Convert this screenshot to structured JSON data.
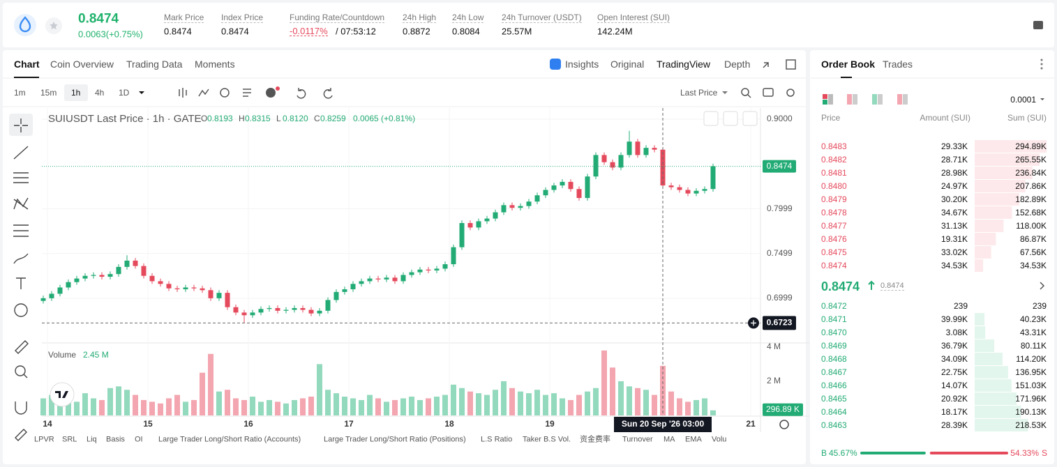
{
  "header": {
    "price": "0.8474",
    "change": "0.0063(+0.75%)",
    "stats": [
      {
        "label": "Mark Price",
        "value": "0.8474"
      },
      {
        "label": "Index Price",
        "value": "0.8474"
      },
      {
        "label": "Funding Rate/Countdown",
        "value": "-0.0117%",
        "countdown": "/ 07:53:12"
      },
      {
        "label": "24h High",
        "value": "0.8872"
      },
      {
        "label": "24h Low",
        "value": "0.8084"
      },
      {
        "label": "24h Turnover (USDT)",
        "value": "25.57M"
      },
      {
        "label": "Open Interest (SUI)",
        "value": "142.24M"
      }
    ]
  },
  "tabs": [
    "Chart",
    "Coin Overview",
    "Trading Data",
    "Moments"
  ],
  "view_tabs": [
    "Insights",
    "Original",
    "TradingView",
    "Depth"
  ],
  "intervals": [
    "1m",
    "15m",
    "1h",
    "4h",
    "1D"
  ],
  "price_type": "Last Price",
  "chart_data": {
    "type": "candlestick",
    "title": "SUIUSDT Last Price · 1h · GATE",
    "ohlc_legend": [
      {
        "key": "O",
        "value": "0.8193"
      },
      {
        "key": "H",
        "value": "0.8315"
      },
      {
        "key": "L",
        "value": "0.8120"
      },
      {
        "key": "C",
        "value": "0.8259"
      }
    ],
    "legend_change": "0.0065 (+0.81%)",
    "up_color": "#22ab74",
    "down_color": "#e5495c",
    "x": [
      -1,
      1,
      3,
      5,
      7,
      9,
      11,
      13,
      15,
      17,
      19,
      21,
      23,
      25,
      27,
      29,
      31,
      33,
      35,
      37,
      39,
      41,
      43,
      45,
      47,
      49,
      51,
      53,
      55,
      57,
      59,
      61,
      63,
      65,
      67,
      69,
      71,
      73,
      75,
      77,
      79,
      81,
      83,
      85,
      87,
      89,
      91,
      93,
      95,
      97,
      99,
      101,
      103,
      105,
      107,
      109,
      111,
      113,
      115,
      117,
      119,
      121,
      123,
      125,
      127,
      129,
      131,
      133,
      135,
      137,
      139,
      141,
      143,
      145,
      147,
      149,
      151,
      153,
      155,
      157,
      159
    ],
    "open": [
      0.697,
      0.7,
      0.705,
      0.712,
      0.718,
      0.722,
      0.725,
      0.726,
      0.724,
      0.727,
      0.735,
      0.742,
      0.736,
      0.725,
      0.719,
      0.716,
      0.711,
      0.71,
      0.712,
      0.711,
      0.709,
      0.7,
      0.706,
      0.69,
      0.684,
      0.681,
      0.684,
      0.688,
      0.689,
      0.686,
      0.687,
      0.689,
      0.687,
      0.683,
      0.686,
      0.698,
      0.707,
      0.71,
      0.716,
      0.719,
      0.722,
      0.721,
      0.723,
      0.719,
      0.726,
      0.729,
      0.732,
      0.731,
      0.733,
      0.738,
      0.757,
      0.784,
      0.779,
      0.786,
      0.789,
      0.796,
      0.804,
      0.801,
      0.803,
      0.808,
      0.815,
      0.821,
      0.826,
      0.83,
      0.822,
      0.812,
      0.836,
      0.86,
      0.852,
      0.846,
      0.86,
      0.875,
      0.86,
      0.868,
      0.866,
      0.826,
      0.824,
      0.821,
      0.817,
      0.82,
      0.822
    ],
    "high": [
      0.703,
      0.708,
      0.715,
      0.721,
      0.725,
      0.728,
      0.729,
      0.729,
      0.73,
      0.738,
      0.748,
      0.745,
      0.739,
      0.728,
      0.722,
      0.719,
      0.714,
      0.715,
      0.715,
      0.714,
      0.712,
      0.709,
      0.709,
      0.693,
      0.687,
      0.687,
      0.691,
      0.692,
      0.692,
      0.69,
      0.692,
      0.692,
      0.69,
      0.689,
      0.701,
      0.71,
      0.713,
      0.719,
      0.722,
      0.725,
      0.725,
      0.726,
      0.726,
      0.729,
      0.732,
      0.735,
      0.735,
      0.736,
      0.741,
      0.76,
      0.787,
      0.787,
      0.789,
      0.792,
      0.799,
      0.807,
      0.807,
      0.806,
      0.811,
      0.818,
      0.824,
      0.829,
      0.833,
      0.833,
      0.825,
      0.839,
      0.863,
      0.863,
      0.855,
      0.863,
      0.887,
      0.878,
      0.871,
      0.871,
      0.869,
      0.829,
      0.827,
      0.824,
      0.823,
      0.825,
      0.8504
    ],
    "low": [
      0.694,
      0.697,
      0.702,
      0.709,
      0.715,
      0.719,
      0.722,
      0.721,
      0.721,
      0.724,
      0.732,
      0.733,
      0.722,
      0.716,
      0.713,
      0.708,
      0.707,
      0.707,
      0.708,
      0.706,
      0.697,
      0.697,
      0.687,
      0.681,
      0.6723,
      0.678,
      0.681,
      0.685,
      0.683,
      0.683,
      0.684,
      0.684,
      0.68,
      0.68,
      0.683,
      0.695,
      0.704,
      0.707,
      0.713,
      0.716,
      0.718,
      0.718,
      0.716,
      0.716,
      0.723,
      0.726,
      0.728,
      0.728,
      0.73,
      0.735,
      0.754,
      0.776,
      0.776,
      0.783,
      0.786,
      0.793,
      0.798,
      0.798,
      0.8,
      0.805,
      0.812,
      0.818,
      0.823,
      0.819,
      0.809,
      0.809,
      0.833,
      0.849,
      0.843,
      0.843,
      0.857,
      0.857,
      0.857,
      0.863,
      0.823,
      0.821,
      0.818,
      0.814,
      0.814,
      0.817,
      0.819
    ],
    "close": [
      0.7,
      0.705,
      0.712,
      0.718,
      0.722,
      0.725,
      0.726,
      0.724,
      0.727,
      0.735,
      0.742,
      0.736,
      0.725,
      0.719,
      0.716,
      0.711,
      0.71,
      0.712,
      0.711,
      0.709,
      0.7,
      0.706,
      0.69,
      0.684,
      0.681,
      0.684,
      0.688,
      0.689,
      0.686,
      0.687,
      0.689,
      0.687,
      0.683,
      0.686,
      0.698,
      0.707,
      0.71,
      0.716,
      0.719,
      0.722,
      0.721,
      0.723,
      0.719,
      0.726,
      0.729,
      0.732,
      0.731,
      0.733,
      0.738,
      0.757,
      0.784,
      0.779,
      0.786,
      0.789,
      0.796,
      0.804,
      0.801,
      0.803,
      0.808,
      0.815,
      0.821,
      0.826,
      0.83,
      0.822,
      0.812,
      0.836,
      0.86,
      0.852,
      0.846,
      0.86,
      0.875,
      0.86,
      0.868,
      0.866,
      0.826,
      0.824,
      0.821,
      0.817,
      0.82,
      0.822,
      0.8474
    ],
    "xlim": [
      -1.333,
      170.333
    ],
    "xticks": [
      {
        "value": 0,
        "label": "14"
      },
      {
        "value": 24,
        "label": "15"
      },
      {
        "value": 48,
        "label": "16"
      },
      {
        "value": 72,
        "label": "17"
      },
      {
        "value": 96,
        "label": "18"
      },
      {
        "value": 120,
        "label": "19"
      },
      {
        "value": 168,
        "label": "21"
      }
    ],
    "ylim": [
      0.6516,
      0.9125
    ],
    "yticks": [
      {
        "value": 0.9,
        "label": "0.9000"
      },
      0.7999,
      0.7499,
      0.6999
    ],
    "grid": true,
    "crosshair": {
      "x": 147,
      "x_label": "Sun 20 Sep '26 03:00",
      "y": 0.6723
    },
    "volume": {
      "title": "Volume",
      "legend_value": "2.45 M",
      "up_color": "#93d9bd",
      "down_color": "#f3a5b0",
      "values": [
        1.0,
        1.2,
        0.9,
        1.1,
        0.8,
        1.3,
        1.0,
        0.9,
        1.6,
        1.7,
        1.5,
        1.2,
        0.9,
        0.8,
        0.7,
        1.0,
        1.2,
        0.8,
        0.9,
        2.5,
        3.6,
        1.4,
        1.5,
        1.0,
        0.9,
        1.1,
        0.8,
        0.9,
        0.8,
        0.7,
        0.9,
        1.0,
        1.1,
        3.0,
        1.5,
        1.3,
        1.1,
        1.0,
        0.9,
        1.2,
        1.0,
        0.8,
        0.9,
        1.0,
        1.1,
        0.9,
        1.0,
        1.1,
        1.2,
        1.8,
        1.6,
        1.4,
        1.3,
        1.2,
        1.5,
        2.0,
        1.6,
        1.4,
        1.3,
        1.5,
        1.2,
        1.3,
        1.0,
        0.9,
        1.2,
        1.4,
        1.6,
        3.8,
        2.8,
        2.0,
        1.7,
        1.6,
        1.5,
        1.2,
        2.9,
        1.4,
        1.0,
        0.8,
        0.9,
        1.0,
        0.29689
      ],
      "last_value_label": "296.89 K",
      "ylim": [
        0,
        4.16
      ],
      "yticks": [
        {
          "value": 4,
          "label": "4 M"
        },
        {
          "value": 2,
          "label": "2 M"
        }
      ]
    }
  },
  "indicators": [
    "LPVR",
    "SRL",
    "Liq",
    "Basis",
    "OI",
    "Large Trader Long/Short Ratio (Accounts)",
    "Large Trader Long/Short Ratio (Positions)",
    "L.S Ratio",
    "Taker B.S Vol.",
    "资金费率",
    "Turnover",
    "MA",
    "EMA",
    "Volu"
  ],
  "order_book": {
    "tabs": [
      "Order Book",
      "Trades"
    ],
    "precision": "0.0001",
    "columns": [
      "Price",
      "Amount (SUI)",
      "Sum (SUI)"
    ],
    "asks": [
      [
        "0.8483",
        "29.33K",
        "294.89K"
      ],
      [
        "0.8482",
        "28.71K",
        "265.55K"
      ],
      [
        "0.8481",
        "28.98K",
        "236.84K"
      ],
      [
        "0.8480",
        "24.97K",
        "207.86K"
      ],
      [
        "0.8479",
        "30.20K",
        "182.89K"
      ],
      [
        "0.8478",
        "34.67K",
        "152.68K"
      ],
      [
        "0.8477",
        "31.13K",
        "118.00K"
      ],
      [
        "0.8476",
        "19.31K",
        "86.87K"
      ],
      [
        "0.8475",
        "33.02K",
        "67.56K"
      ],
      [
        "0.8474",
        "34.53K",
        "34.53K"
      ]
    ],
    "last_price": "0.8474",
    "mark_price": "0.8474",
    "bids": [
      [
        "0.8472",
        "239",
        "239"
      ],
      [
        "0.8471",
        "39.99K",
        "40.23K"
      ],
      [
        "0.8470",
        "3.08K",
        "43.31K"
      ],
      [
        "0.8469",
        "36.79K",
        "80.11K"
      ],
      [
        "0.8468",
        "34.09K",
        "114.20K"
      ],
      [
        "0.8467",
        "22.75K",
        "136.95K"
      ],
      [
        "0.8466",
        "14.07K",
        "151.03K"
      ],
      [
        "0.8465",
        "20.92K",
        "171.96K"
      ],
      [
        "0.8464",
        "18.17K",
        "190.13K"
      ],
      [
        "0.8463",
        "28.39K",
        "218.53K"
      ]
    ],
    "buy_key": "B",
    "buy_ratio": "45.67%",
    "sell_ratio": "54.33%",
    "sell_key": "S"
  }
}
